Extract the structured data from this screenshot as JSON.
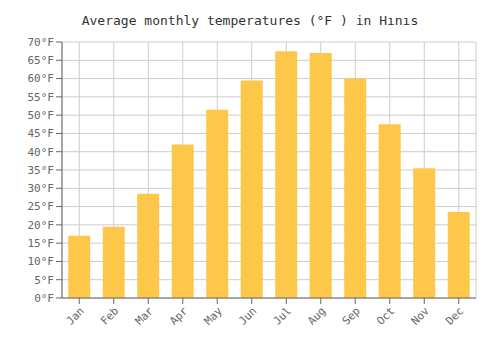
{
  "chart_data": {
    "type": "bar",
    "title": "Average monthly temperatures (°F ) in Hınıs",
    "categories": [
      "Jan",
      "Feb",
      "Mar",
      "Apr",
      "May",
      "Jun",
      "Jul",
      "Aug",
      "Sep",
      "Oct",
      "Nov",
      "Dec"
    ],
    "values": [
      17,
      19.5,
      28.5,
      42,
      51.5,
      59.5,
      67.5,
      67,
      60,
      47.5,
      35.5,
      23.5
    ],
    "color": "#FDC84A",
    "ylim": [
      0,
      70
    ],
    "yticks": [
      {
        "value": 0,
        "label": "0°F"
      },
      {
        "value": 5,
        "label": "5°F"
      },
      {
        "value": 10,
        "label": "10°F"
      },
      {
        "value": 15,
        "label": "15°F"
      },
      {
        "value": 20,
        "label": "20°F"
      },
      {
        "value": 25,
        "label": "25°F"
      },
      {
        "value": 30,
        "label": "30°F"
      },
      {
        "value": 35,
        "label": "35°F"
      },
      {
        "value": 40,
        "label": "40°F"
      },
      {
        "value": 45,
        "label": "45°F"
      },
      {
        "value": 50,
        "label": "50°F"
      },
      {
        "value": 55,
        "label": "55°F"
      },
      {
        "value": 60,
        "label": "60°F"
      },
      {
        "value": 65,
        "label": "65°F"
      },
      {
        "value": 70,
        "label": "70°F"
      }
    ],
    "grid": true
  }
}
